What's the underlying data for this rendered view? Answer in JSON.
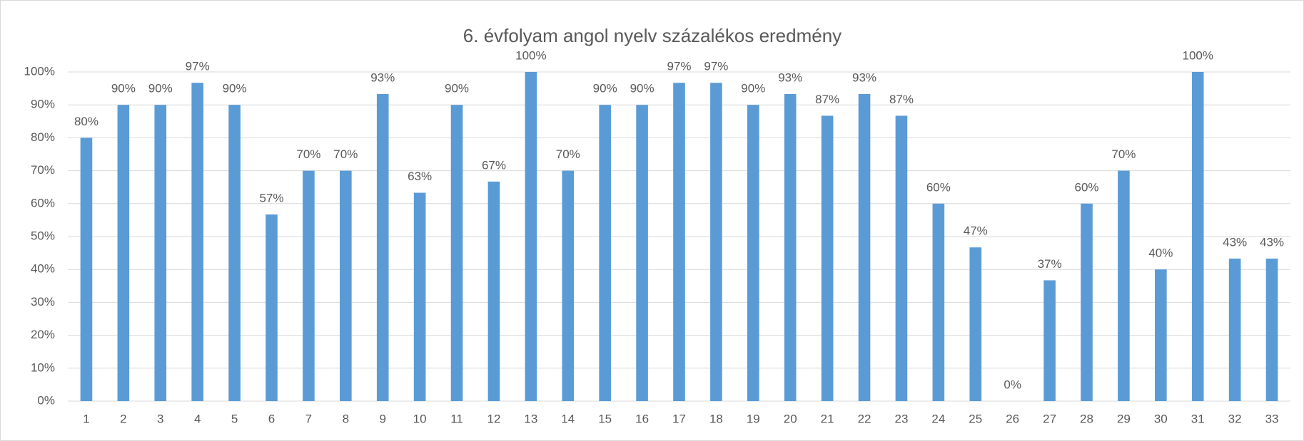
{
  "chart_data": {
    "type": "bar",
    "title": "6. évfolyam angol nyelv százalékos eredmény",
    "categories": [
      "1",
      "2",
      "3",
      "4",
      "5",
      "6",
      "7",
      "8",
      "9",
      "10",
      "11",
      "12",
      "13",
      "14",
      "15",
      "16",
      "17",
      "18",
      "19",
      "20",
      "21",
      "22",
      "23",
      "24",
      "25",
      "26",
      "27",
      "28",
      "29",
      "30",
      "31",
      "32",
      "33"
    ],
    "values": [
      80,
      90,
      90,
      96.7,
      90,
      56.7,
      70,
      70,
      93.3,
      63.3,
      90,
      66.7,
      100,
      70,
      90,
      90,
      96.7,
      96.7,
      90,
      93.3,
      86.7,
      93.3,
      86.7,
      60,
      46.7,
      0,
      36.7,
      60,
      70,
      40,
      100,
      43.3,
      43.3
    ],
    "value_labels": [
      "80%",
      "90%",
      "90%",
      "97%",
      "90%",
      "57%",
      "70%",
      "70%",
      "93%",
      "63%",
      "90%",
      "67%",
      "100%",
      "70%",
      "90%",
      "90%",
      "97%",
      "97%",
      "90%",
      "93%",
      "87%",
      "93%",
      "87%",
      "60%",
      "47%",
      "0%",
      "37%",
      "60%",
      "70%",
      "40%",
      "100%",
      "43%",
      "43%"
    ],
    "color": "#5b9bd5",
    "ylim": [
      0,
      100
    ],
    "yticks": [
      {
        "value": 0,
        "label": "0%"
      },
      {
        "value": 10,
        "label": "10%"
      },
      {
        "value": 20,
        "label": "20%"
      },
      {
        "value": 30,
        "label": "30%"
      },
      {
        "value": 40,
        "label": "40%"
      },
      {
        "value": 50,
        "label": "50%"
      },
      {
        "value": 60,
        "label": "60%"
      },
      {
        "value": 70,
        "label": "70%"
      },
      {
        "value": 80,
        "label": "80%"
      },
      {
        "value": 90,
        "label": "90%"
      },
      {
        "value": 100,
        "label": "100%"
      }
    ],
    "grid": true
  }
}
